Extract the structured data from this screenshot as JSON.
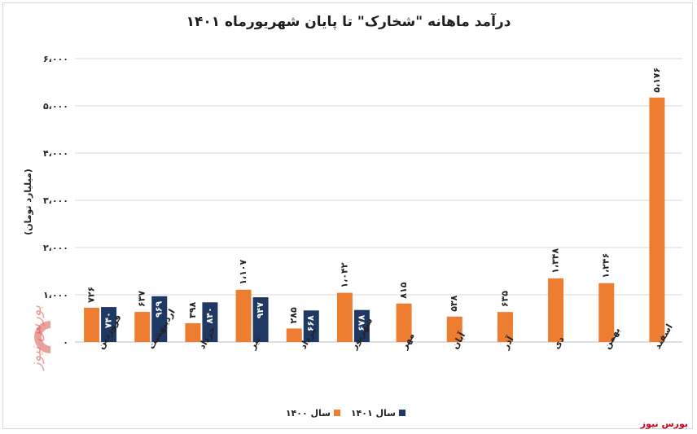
{
  "source": "بورس نیوز",
  "chart_data": {
    "type": "bar",
    "title": "درآمد ماهانه \"شخارک\" تا پایان شهریورماه ۱۴۰۱",
    "ylabel": "(میلیارد تومان)",
    "xlabel": "",
    "ylim": [
      0,
      6000
    ],
    "ytick_labels": [
      "۰",
      "۱،۰۰۰",
      "۲،۰۰۰",
      "۳،۰۰۰",
      "۴،۰۰۰",
      "۵،۰۰۰",
      "۶،۰۰۰"
    ],
    "grid": true,
    "legend_position": "bottom",
    "categories": [
      "فروردین",
      "اردیبهشت",
      "خرداد",
      "تیر",
      "مرداد",
      "شهریور",
      "مهر",
      "آبان",
      "آذر",
      "دی",
      "بهمن",
      "اسفند"
    ],
    "series": [
      {
        "name": "سال ۱۴۰۰",
        "color": "#ed7d31",
        "values": [
          726,
          637,
          398,
          1107,
          285,
          1042,
          815,
          538,
          635,
          1348,
          1246,
          5176
        ],
        "labels": [
          "۷۲۶",
          "۶۳۷",
          "۳۹۸",
          "۱،۱۰۷",
          "۲۸۵",
          "۱،۰۴۲",
          "۸۱۵",
          "۵۳۸",
          "۶۳۵",
          "۱،۳۴۸",
          "۱،۲۴۶",
          "۵،۱۷۶"
        ]
      },
      {
        "name": "سال ۱۴۰۱",
        "color": "#1f3864",
        "values": [
          740,
          969,
          840,
          947,
          668,
          678,
          null,
          null,
          null,
          null,
          null,
          null
        ],
        "labels": [
          "۷۴۰",
          "۹۶۹",
          "۸۴۰",
          "۹۴۷",
          "۶۶۸",
          "۶۷۸",
          "",
          "",
          "",
          "",
          "",
          ""
        ]
      }
    ]
  }
}
